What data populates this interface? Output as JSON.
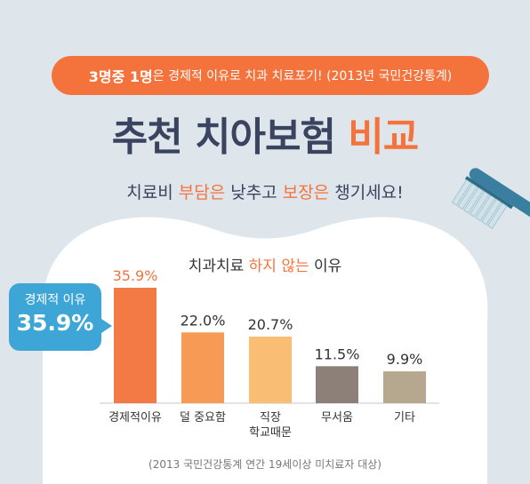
{
  "header": {
    "pill_bold": "3명중 1명",
    "pill_rest": "은 경제적 이유로 치과 치료포기! (2013년 국민건강통계)",
    "title_main": "추천 치아보험",
    "title_accent": "비교",
    "subtitle_parts": [
      "치료비 ",
      "부담은",
      " 낮추고 ",
      "보장은",
      " 챙기세요!"
    ]
  },
  "callout": {
    "label": "경제적 이유",
    "value": "35.9%"
  },
  "chart_title": {
    "pre": "치과치료 ",
    "accent": "하지 않는",
    "post": " 이유"
  },
  "footnote": "(2013 국민건강통계 연간 19세이상 미치료자 대상)",
  "colors": {
    "accent": "#f4733d",
    "navy": "#3a4360",
    "callout": "#3ea6d6"
  },
  "chart_data": {
    "type": "bar",
    "categories": [
      "경제적이유",
      "덜 중요함",
      "직장\n학교때문",
      "무서움",
      "기타"
    ],
    "values": [
      35.9,
      22.0,
      20.7,
      11.5,
      9.9
    ],
    "value_labels": [
      "35.9%",
      "22.0%",
      "20.7%",
      "11.5%",
      "9.9%"
    ],
    "bar_colors": [
      "#f47a45",
      "#f79a56",
      "#f9be74",
      "#8c8078",
      "#b6a88e"
    ],
    "label_colors": [
      "#f4733d",
      "#333333",
      "#333333",
      "#333333",
      "#333333"
    ],
    "ylim": [
      0,
      35.9
    ],
    "title": "치과치료 하지 않는 이유",
    "xlabel": "",
    "ylabel": ""
  }
}
